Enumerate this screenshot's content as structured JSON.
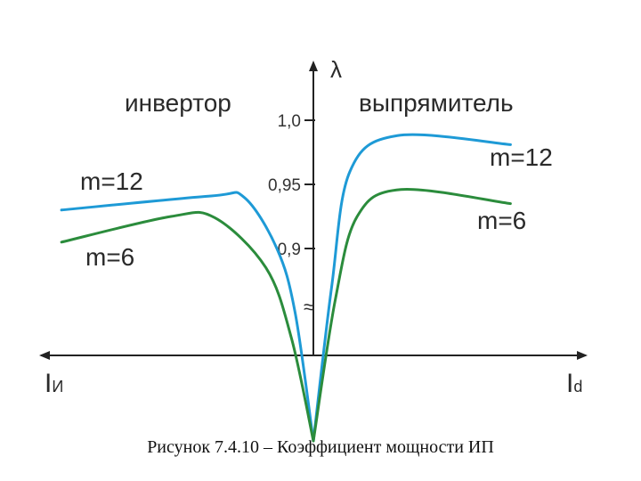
{
  "caption": "Рисунок 7.4.10 – Коэффициент мощности ИП",
  "chart_data": {
    "type": "line",
    "ylabel": "λ",
    "axis_break_symbol": "≈",
    "x_left_label": {
      "main": "I",
      "sub": "И"
    },
    "x_right_label": {
      "main": "I",
      "sub": "d"
    },
    "region_labels": {
      "left": "инвертор",
      "right": "выпрямитель"
    },
    "yticks": [
      {
        "value": 0.9,
        "label": "0,9"
      },
      {
        "value": 0.95,
        "label": "0,95"
      },
      {
        "value": 1.0,
        "label": "1,0"
      }
    ],
    "series": [
      {
        "name": "m=12",
        "color": "#1e9ad6",
        "label_left": "m=12",
        "label_right": "m=12",
        "points": [
          [
            -3.45,
            0.93
          ],
          [
            -1.4,
            0.941
          ],
          [
            -0.95,
            0.94
          ],
          [
            -0.5,
            0.9
          ],
          [
            -0.25,
            0.85
          ],
          [
            0,
            0.75
          ],
          [
            0.25,
            0.87
          ],
          [
            0.5,
            0.96
          ],
          [
            1.15,
            0.988
          ],
          [
            2.7,
            0.981
          ]
        ]
      },
      {
        "name": "m=6",
        "color": "#2b8c3c",
        "label_left": "m=6",
        "label_right": "m=6",
        "points": [
          [
            -3.45,
            0.905
          ],
          [
            -1.95,
            0.925
          ],
          [
            -1.35,
            0.924
          ],
          [
            -0.65,
            0.885
          ],
          [
            -0.3,
            0.83
          ],
          [
            0,
            0.75
          ],
          [
            0.3,
            0.86
          ],
          [
            0.6,
            0.925
          ],
          [
            1.2,
            0.946
          ],
          [
            2.7,
            0.935
          ]
        ]
      }
    ],
    "grid": false
  }
}
